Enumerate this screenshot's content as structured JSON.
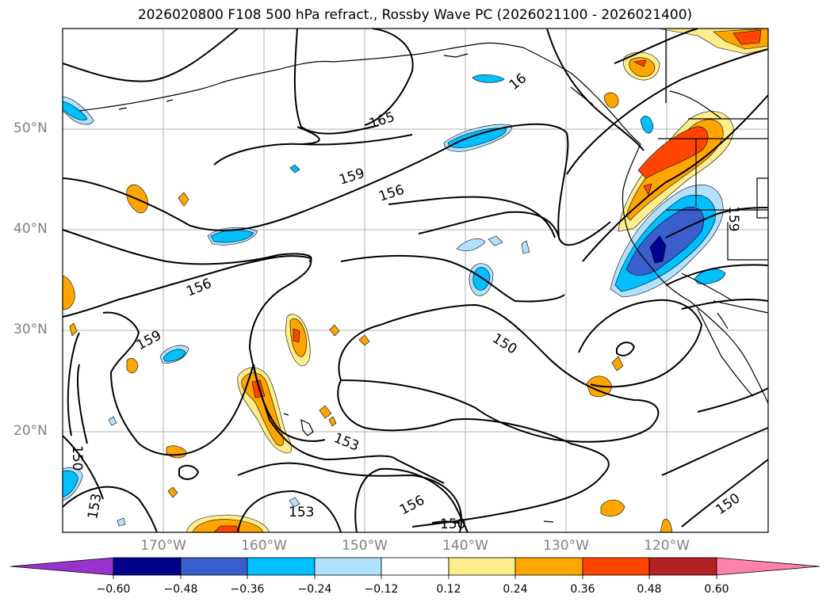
{
  "title": "2026020800 F108 500 hPa refract., Rossby Wave PC (2026021100 - 2026021400)",
  "latitude_labels": [
    "50°N",
    "40°N",
    "30°N",
    "20°N"
  ],
  "longitude_labels": [
    "170°W",
    "160°W",
    "150°W",
    "140°W",
    "130°W",
    "120°W"
  ],
  "contour_labels": [
    "165",
    "159",
    "156",
    "156",
    "159",
    "150",
    "153",
    "153",
    "150",
    "153",
    "156",
    "150",
    "150",
    "16",
    "159"
  ],
  "colorbar": {
    "tick_labels": [
      "−0.60",
      "−0.48",
      "−0.36",
      "−0.24",
      "−0.12",
      "0.12",
      "0.24",
      "0.36",
      "0.48",
      "0.60"
    ],
    "colors": [
      "#9932cc",
      "#00008b",
      "#3a5fcd",
      "#00bfff",
      "#b0e2ff",
      "#ffffff",
      "#ffec8b",
      "#ffa500",
      "#ff4500",
      "#b22222",
      "#ff82ab"
    ]
  },
  "fill_colors": {
    "neg_light": "#b0e2ff",
    "neg_mid": "#00bfff",
    "neg_strong": "#3a5fcd",
    "neg_max": "#00008b",
    "pos_light": "#ffec8b",
    "pos_mid": "#ffa500",
    "pos_strong": "#ff4500"
  }
}
